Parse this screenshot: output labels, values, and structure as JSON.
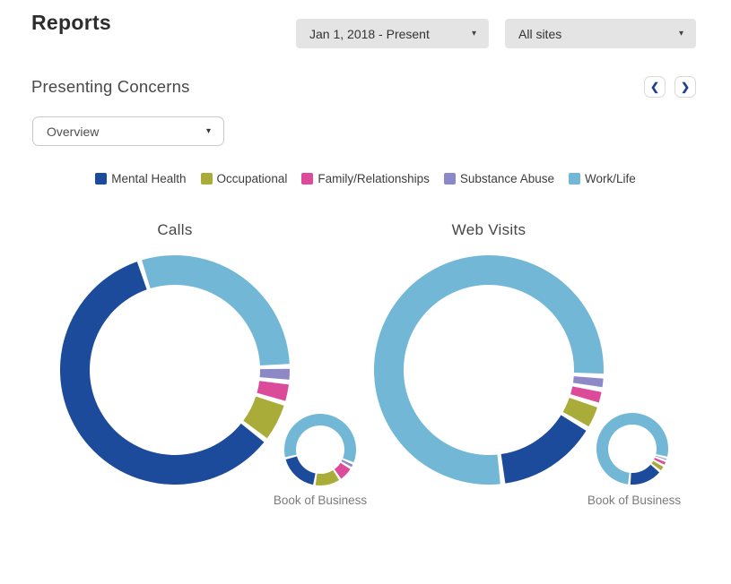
{
  "page": {
    "title": "Reports"
  },
  "header": {
    "date_range": {
      "value": "Jan 1, 2018 - Present",
      "caret": "▾"
    },
    "site_filter": {
      "value": "All sites",
      "caret": "▾"
    }
  },
  "section": {
    "title": "Presenting Concerns",
    "prev_icon": "❮",
    "next_icon": "❯"
  },
  "view_select": {
    "value": "Overview",
    "caret": "▾"
  },
  "colors": {
    "mental_health": "#1c4b9c",
    "occupational": "#a9ac39",
    "family_relationships": "#dc4a9a",
    "substance_abuse": "#8d89c6",
    "work_life": "#72b8d6"
  },
  "legend": [
    {
      "label": "Mental Health",
      "color": "#1c4b9c"
    },
    {
      "label": "Occupational",
      "color": "#a9ac39"
    },
    {
      "label": "Family/Relationships",
      "color": "#dc4a9a"
    },
    {
      "label": "Substance Abuse",
      "color": "#8d89c6"
    },
    {
      "label": "Work/Life",
      "color": "#72b8d6"
    }
  ],
  "chart_data": [
    {
      "type": "pie",
      "title": "Calls",
      "categories": [
        "Mental Health",
        "Occupational",
        "Family/Relationships",
        "Substance Abuse",
        "Work/Life"
      ],
      "main_donut": {
        "start_angle": 342,
        "pad_angle": 2.5,
        "outer_radius": 128,
        "inner_radius": 95,
        "slices": [
          {
            "label": "Mental Health",
            "value": 59.5,
            "color": "#1c4b9c"
          },
          {
            "label": "Occupational",
            "value": 5.8,
            "color": "#a9ac39"
          },
          {
            "label": "Family/Relationships",
            "value": 3.0,
            "color": "#dc4a9a"
          },
          {
            "label": "Substance Abuse",
            "value": 2.2,
            "color": "#8d89c6"
          },
          {
            "label": "Work/Life",
            "value": 29.5,
            "color": "#72b8d6"
          }
        ]
      },
      "book_of_business": {
        "label": "Book of Business",
        "start_angle": 256,
        "pad_angle": 4,
        "outer_radius": 40,
        "inner_radius": 27,
        "slices": [
          {
            "label": "Mental Health",
            "value": 18.5,
            "color": "#1c4b9c"
          },
          {
            "label": "Occupational",
            "value": 12.0,
            "color": "#a9ac39"
          },
          {
            "label": "Family/Relationships",
            "value": 7.0,
            "color": "#dc4a9a"
          },
          {
            "label": "Substance Abuse",
            "value": 2.3,
            "color": "#8d89c6"
          },
          {
            "label": "Work/Life",
            "value": 60.2,
            "color": "#72b8d6"
          }
        ]
      }
    },
    {
      "type": "pie",
      "title": "Web Visits",
      "categories": [
        "Mental Health",
        "Occupational",
        "Family/Relationships",
        "Substance Abuse",
        "Work/Life"
      ],
      "main_donut": {
        "start_angle": 173,
        "pad_angle": 2.5,
        "outer_radius": 128,
        "inner_radius": 95,
        "slices": [
          {
            "label": "Mental Health",
            "value": 14.5,
            "color": "#1c4b9c"
          },
          {
            "label": "Occupational",
            "value": 3.6,
            "color": "#a9ac39"
          },
          {
            "label": "Family/Relationships",
            "value": 2.2,
            "color": "#dc4a9a"
          },
          {
            "label": "Substance Abuse",
            "value": 1.9,
            "color": "#8d89c6"
          },
          {
            "label": "Work/Life",
            "value": 77.8,
            "color": "#72b8d6"
          }
        ]
      },
      "book_of_business": {
        "label": "Book of Business",
        "start_angle": 185,
        "pad_angle": 4,
        "outer_radius": 40,
        "inner_radius": 27,
        "slices": [
          {
            "label": "Mental Health",
            "value": 15.5,
            "color": "#1c4b9c"
          },
          {
            "label": "Occupational",
            "value": 3.0,
            "color": "#a9ac39"
          },
          {
            "label": "Family/Relationships",
            "value": 2.3,
            "color": "#dc4a9a"
          },
          {
            "label": "Substance Abuse",
            "value": 1.5,
            "color": "#8d89c6"
          },
          {
            "label": "Work/Life",
            "value": 77.7,
            "color": "#72b8d6"
          }
        ]
      }
    }
  ]
}
